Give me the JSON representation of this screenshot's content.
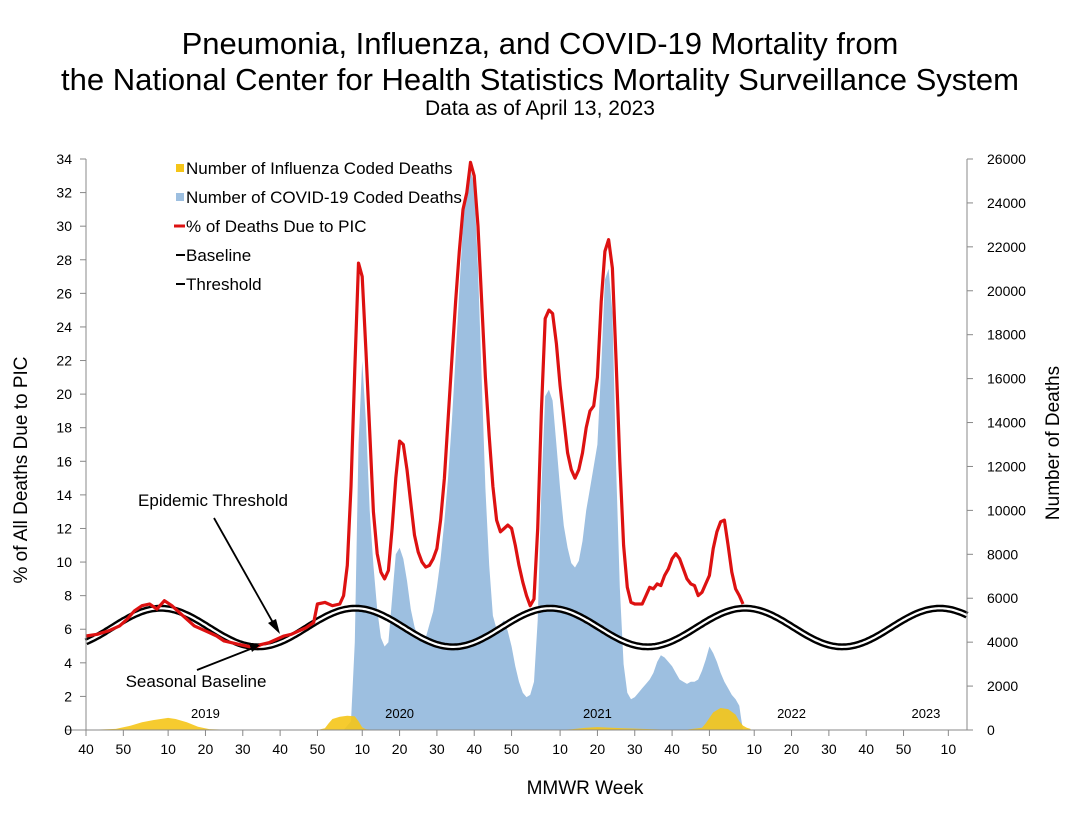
{
  "header": {
    "title_line1": "Pneumonia, Influenza, and COVID-19 Mortality from",
    "title_line2": "the National Center for Health Statistics Mortality Surveillance System",
    "subtitle": "Data as of April 13, 2023"
  },
  "colors": {
    "influenza": "#f5c518",
    "covid": "#9dbfe0",
    "pic": "#dd1111",
    "baseline": "#000000",
    "overlap": "#8a8d40"
  },
  "chart_data": {
    "type": "area",
    "xlabel": "MMWR Week",
    "ylabel_left": "% of All Deaths Due to PIC",
    "ylabel_right": "Number of Deaths",
    "ylim_left": [
      0,
      34
    ],
    "ylim_right": [
      0,
      26000
    ],
    "y_ticks_left": [
      "0",
      "2",
      "4",
      "6",
      "8",
      "10",
      "12",
      "14",
      "16",
      "18",
      "20",
      "22",
      "24",
      "26",
      "28",
      "30",
      "32",
      "34"
    ],
    "y_ticks_right": [
      "0",
      "2000",
      "4000",
      "6000",
      "8000",
      "10000",
      "12000",
      "14000",
      "16000",
      "18000",
      "20000",
      "22000",
      "24000",
      "26000"
    ],
    "x_ticks": [
      "40",
      "50",
      "10",
      "20",
      "30",
      "40",
      "50",
      "10",
      "20",
      "30",
      "40",
      "50",
      "10",
      "20",
      "30",
      "40",
      "50",
      "10",
      "20",
      "30",
      "40",
      "50",
      "10"
    ],
    "x_tick_weeks": [
      0,
      10,
      22,
      32,
      42,
      52,
      62,
      74,
      84,
      94,
      104,
      114,
      127,
      137,
      147,
      157,
      167,
      179,
      189,
      199,
      209,
      219,
      231
    ],
    "x_range_weeks": [
      0,
      236
    ],
    "year_labels": [
      {
        "text": "2019",
        "week": 32
      },
      {
        "text": "2020",
        "week": 84
      },
      {
        "text": "2021",
        "week": 137
      },
      {
        "text": "2022",
        "week": 189
      },
      {
        "text": "2023",
        "week": 225
      }
    ],
    "legend": [
      {
        "key": "influenza",
        "label": "Number of Influenza Coded Deaths"
      },
      {
        "key": "covid",
        "label": "Number of COVID-19 Coded Deaths"
      },
      {
        "key": "pic",
        "label": "% of Deaths Due to PIC"
      },
      {
        "key": "baseline",
        "label": "Baseline"
      },
      {
        "key": "threshold",
        "label": "Threshold"
      }
    ],
    "annotations": [
      {
        "key": "threshold",
        "text": "Epidemic Threshold"
      },
      {
        "key": "baseline",
        "text": "Seasonal Baseline"
      }
    ],
    "series": [
      {
        "name": "Number of COVID-19 Coded Deaths",
        "axis": "right",
        "points": [
          [
            69,
            0
          ],
          [
            71,
            400
          ],
          [
            72,
            4000
          ],
          [
            73,
            13000
          ],
          [
            74,
            16800
          ],
          [
            75,
            14000
          ],
          [
            76,
            10000
          ],
          [
            77,
            7500
          ],
          [
            78,
            5500
          ],
          [
            79,
            4200
          ],
          [
            80,
            3800
          ],
          [
            81,
            4000
          ],
          [
            82,
            6000
          ],
          [
            83,
            8000
          ],
          [
            84,
            8300
          ],
          [
            85,
            7800
          ],
          [
            86,
            6800
          ],
          [
            87,
            5500
          ],
          [
            88,
            4700
          ],
          [
            89,
            4200
          ],
          [
            90,
            4000
          ],
          [
            91,
            4200
          ],
          [
            92,
            4800
          ],
          [
            93,
            5400
          ],
          [
            94,
            6500
          ],
          [
            95,
            7800
          ],
          [
            96,
            9500
          ],
          [
            97,
            11500
          ],
          [
            98,
            14000
          ],
          [
            99,
            17000
          ],
          [
            100,
            20000
          ],
          [
            101,
            23000
          ],
          [
            102,
            25000
          ],
          [
            103,
            25500
          ],
          [
            104,
            24800
          ],
          [
            105,
            21000
          ],
          [
            106,
            16000
          ],
          [
            107,
            11000
          ],
          [
            108,
            7500
          ],
          [
            109,
            5200
          ],
          [
            110,
            4600
          ],
          [
            111,
            4800
          ],
          [
            112,
            5000
          ],
          [
            113,
            4500
          ],
          [
            114,
            3800
          ],
          [
            115,
            2900
          ],
          [
            116,
            2200
          ],
          [
            117,
            1700
          ],
          [
            118,
            1500
          ],
          [
            119,
            1600
          ],
          [
            120,
            2200
          ],
          [
            121,
            5000
          ],
          [
            122,
            11000
          ],
          [
            123,
            15200
          ],
          [
            124,
            15500
          ],
          [
            125,
            15000
          ],
          [
            126,
            13000
          ],
          [
            127,
            11000
          ],
          [
            128,
            9300
          ],
          [
            129,
            8300
          ],
          [
            130,
            7600
          ],
          [
            131,
            7400
          ],
          [
            132,
            7700
          ],
          [
            133,
            8600
          ],
          [
            134,
            10000
          ],
          [
            135,
            11000
          ],
          [
            136,
            12000
          ],
          [
            137,
            13000
          ],
          [
            138,
            16500
          ],
          [
            139,
            20500
          ],
          [
            140,
            21000
          ],
          [
            141,
            19000
          ],
          [
            142,
            12000
          ],
          [
            143,
            6500
          ],
          [
            144,
            3000
          ],
          [
            145,
            1700
          ],
          [
            146,
            1400
          ],
          [
            147,
            1500
          ],
          [
            148,
            1700
          ],
          [
            149,
            1900
          ],
          [
            150,
            2100
          ],
          [
            151,
            2300
          ],
          [
            152,
            2600
          ],
          [
            153,
            3100
          ],
          [
            154,
            3400
          ],
          [
            155,
            3300
          ],
          [
            156,
            3100
          ],
          [
            157,
            2900
          ],
          [
            158,
            2600
          ],
          [
            159,
            2300
          ],
          [
            160,
            2200
          ],
          [
            161,
            2100
          ],
          [
            162,
            2200
          ],
          [
            163,
            2200
          ],
          [
            164,
            2300
          ],
          [
            165,
            2700
          ],
          [
            166,
            3200
          ],
          [
            167,
            3800
          ],
          [
            168,
            3500
          ],
          [
            169,
            3100
          ],
          [
            170,
            2600
          ],
          [
            171,
            2200
          ],
          [
            172,
            1900
          ],
          [
            173,
            1600
          ],
          [
            174,
            1400
          ],
          [
            175,
            1100
          ],
          [
            175.5,
            500
          ],
          [
            176,
            0
          ]
        ]
      },
      {
        "name": "Number of Influenza Coded Deaths",
        "axis": "right",
        "points": [
          [
            0,
            0
          ],
          [
            8,
            50
          ],
          [
            12,
            200
          ],
          [
            15,
            350
          ],
          [
            18,
            450
          ],
          [
            22,
            550
          ],
          [
            24,
            500
          ],
          [
            27,
            350
          ],
          [
            30,
            150
          ],
          [
            33,
            40
          ],
          [
            40,
            0
          ],
          [
            62,
            0
          ],
          [
            64,
            80
          ],
          [
            65,
            300
          ],
          [
            66,
            500
          ],
          [
            68,
            600
          ],
          [
            70,
            650
          ],
          [
            72,
            620
          ],
          [
            73,
            400
          ],
          [
            74,
            120
          ],
          [
            75,
            30
          ],
          [
            78,
            0
          ],
          [
            126,
            0
          ],
          [
            130,
            30
          ],
          [
            134,
            100
          ],
          [
            137,
            130
          ],
          [
            140,
            110
          ],
          [
            144,
            80
          ],
          [
            155,
            20
          ],
          [
            160,
            0
          ],
          [
            165,
            100
          ],
          [
            166,
            300
          ],
          [
            168,
            800
          ],
          [
            170,
            1000
          ],
          [
            172,
            950
          ],
          [
            174,
            700
          ],
          [
            175,
            400
          ],
          [
            176,
            200
          ],
          [
            177,
            100
          ],
          [
            178,
            50
          ]
        ]
      },
      {
        "name": "% of Deaths Due to PIC",
        "axis": "left",
        "points": [
          [
            0,
            5.6
          ],
          [
            3,
            5.7
          ],
          [
            6,
            5.9
          ],
          [
            9,
            6.2
          ],
          [
            11,
            6.6
          ],
          [
            13,
            7.1
          ],
          [
            15,
            7.4
          ],
          [
            17,
            7.5
          ],
          [
            19,
            7.2
          ],
          [
            21,
            7.7
          ],
          [
            23,
            7.4
          ],
          [
            25,
            7.0
          ],
          [
            27,
            6.6
          ],
          [
            29,
            6.2
          ],
          [
            31,
            6.0
          ],
          [
            33,
            5.8
          ],
          [
            35,
            5.6
          ],
          [
            37,
            5.3
          ],
          [
            39,
            5.2
          ],
          [
            41,
            5.1
          ],
          [
            43,
            5.0
          ],
          [
            45,
            4.9
          ],
          [
            47,
            5.1
          ],
          [
            49,
            5.2
          ],
          [
            51,
            5.4
          ],
          [
            53,
            5.6
          ],
          [
            55,
            5.7
          ],
          [
            57,
            5.9
          ],
          [
            59,
            6.1
          ],
          [
            61,
            6.4
          ],
          [
            62,
            7.5
          ],
          [
            64,
            7.6
          ],
          [
            66,
            7.4
          ],
          [
            68,
            7.5
          ],
          [
            69,
            8.0
          ],
          [
            70,
            9.8
          ],
          [
            71,
            14.5
          ],
          [
            72,
            21.5
          ],
          [
            73,
            27.8
          ],
          [
            74,
            27.0
          ],
          [
            75,
            22.5
          ],
          [
            76,
            17.8
          ],
          [
            77,
            13.0
          ],
          [
            78,
            10.5
          ],
          [
            79,
            9.4
          ],
          [
            80,
            9.0
          ],
          [
            81,
            9.5
          ],
          [
            82,
            12.0
          ],
          [
            83,
            15.0
          ],
          [
            84,
            17.2
          ],
          [
            85,
            17.0
          ],
          [
            86,
            15.5
          ],
          [
            87,
            13.5
          ],
          [
            88,
            11.6
          ],
          [
            89,
            10.6
          ],
          [
            90,
            10.0
          ],
          [
            91,
            9.7
          ],
          [
            92,
            9.8
          ],
          [
            93,
            10.2
          ],
          [
            94,
            10.8
          ],
          [
            95,
            12.5
          ],
          [
            96,
            15.0
          ],
          [
            97,
            18.5
          ],
          [
            98,
            22.0
          ],
          [
            99,
            25.5
          ],
          [
            100,
            28.5
          ],
          [
            101,
            31.0
          ],
          [
            102,
            32.0
          ],
          [
            103,
            33.8
          ],
          [
            104,
            33.0
          ],
          [
            105,
            30.0
          ],
          [
            106,
            25.5
          ],
          [
            107,
            21.0
          ],
          [
            108,
            17.5
          ],
          [
            109,
            14.5
          ],
          [
            110,
            12.5
          ],
          [
            111,
            11.8
          ],
          [
            112,
            12.0
          ],
          [
            113,
            12.2
          ],
          [
            114,
            12.0
          ],
          [
            115,
            11.0
          ],
          [
            116,
            9.8
          ],
          [
            117,
            8.8
          ],
          [
            118,
            8.0
          ],
          [
            119,
            7.4
          ],
          [
            120,
            7.8
          ],
          [
            121,
            12.0
          ],
          [
            122,
            19.0
          ],
          [
            123,
            24.5
          ],
          [
            124,
            25.0
          ],
          [
            125,
            24.8
          ],
          [
            126,
            23.0
          ],
          [
            127,
            20.5
          ],
          [
            128,
            18.5
          ],
          [
            129,
            16.5
          ],
          [
            130,
            15.5
          ],
          [
            131,
            15.0
          ],
          [
            132,
            15.5
          ],
          [
            133,
            16.5
          ],
          [
            134,
            18.0
          ],
          [
            135,
            19.0
          ],
          [
            136,
            19.3
          ],
          [
            137,
            21.0
          ],
          [
            138,
            25.5
          ],
          [
            139,
            28.5
          ],
          [
            140,
            29.2
          ],
          [
            141,
            27.5
          ],
          [
            142,
            22.0
          ],
          [
            143,
            16.0
          ],
          [
            144,
            11.0
          ],
          [
            145,
            8.5
          ],
          [
            146,
            7.6
          ],
          [
            147,
            7.5
          ],
          [
            149,
            7.5
          ],
          [
            150,
            8.0
          ],
          [
            151,
            8.5
          ],
          [
            152,
            8.4
          ],
          [
            153,
            8.7
          ],
          [
            154,
            8.6
          ],
          [
            155,
            9.2
          ],
          [
            156,
            9.6
          ],
          [
            157,
            10.2
          ],
          [
            158,
            10.5
          ],
          [
            159,
            10.2
          ],
          [
            160,
            9.6
          ],
          [
            161,
            9.0
          ],
          [
            162,
            8.7
          ],
          [
            163,
            8.6
          ],
          [
            164,
            8.0
          ],
          [
            165,
            8.2
          ],
          [
            166,
            8.7
          ],
          [
            167,
            9.2
          ],
          [
            168,
            10.8
          ],
          [
            169,
            11.8
          ],
          [
            170,
            12.4
          ],
          [
            171,
            12.5
          ],
          [
            172,
            11.0
          ],
          [
            173,
            9.4
          ],
          [
            174,
            8.4
          ],
          [
            175,
            8.0
          ],
          [
            176,
            7.5
          ]
        ]
      }
    ]
  }
}
